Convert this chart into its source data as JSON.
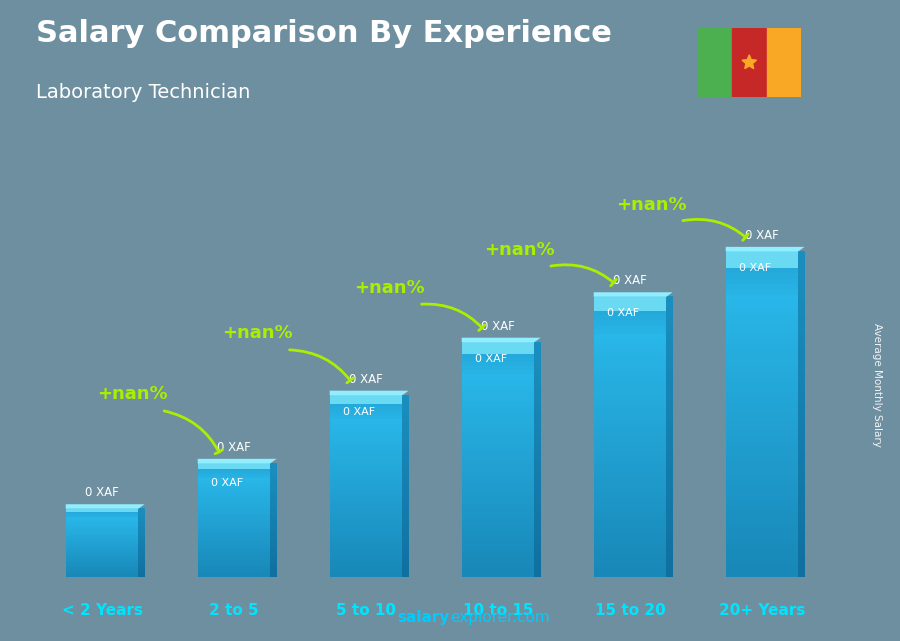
{
  "title": "Salary Comparison By Experience",
  "subtitle": "Laboratory Technician",
  "categories": [
    "< 2 Years",
    "2 to 5",
    "5 to 10",
    "10 to 15",
    "15 to 20",
    "20+ Years"
  ],
  "values": [
    0.18,
    0.3,
    0.48,
    0.62,
    0.74,
    0.86
  ],
  "bar_color_main": "#29b6e8",
  "bar_color_light": "#5dd0f5",
  "bar_color_dark": "#1a90c0",
  "bar_color_top": "#80dff7",
  "bg_color": "#6e8fa0",
  "title_color": "#ffffff",
  "subtitle_color": "#ffffff",
  "xcat_color": "#00e5ff",
  "arrow_color": "#aaee00",
  "percent_color": "#aaee00",
  "value_color": "#ffffff",
  "ylabel": "Average Monthly Salary",
  "watermark_bold": "salary",
  "watermark_normal": "explorer.com",
  "nan_labels": [
    "+nan%",
    "+nan%",
    "+nan%",
    "+nan%",
    "+nan%"
  ],
  "xaf_labels": [
    "0 XAF",
    "0 XAF",
    "0 XAF",
    "0 XAF",
    "0 XAF"
  ],
  "bar_value_labels": [
    "0 XAF",
    "0 XAF",
    "0 XAF",
    "0 XAF",
    "0 XAF",
    "0 XAF"
  ],
  "flag_green": "#4caf50",
  "flag_red": "#c62828",
  "flag_yellow": "#f9a825",
  "figsize": [
    9.0,
    6.41
  ],
  "dpi": 100
}
